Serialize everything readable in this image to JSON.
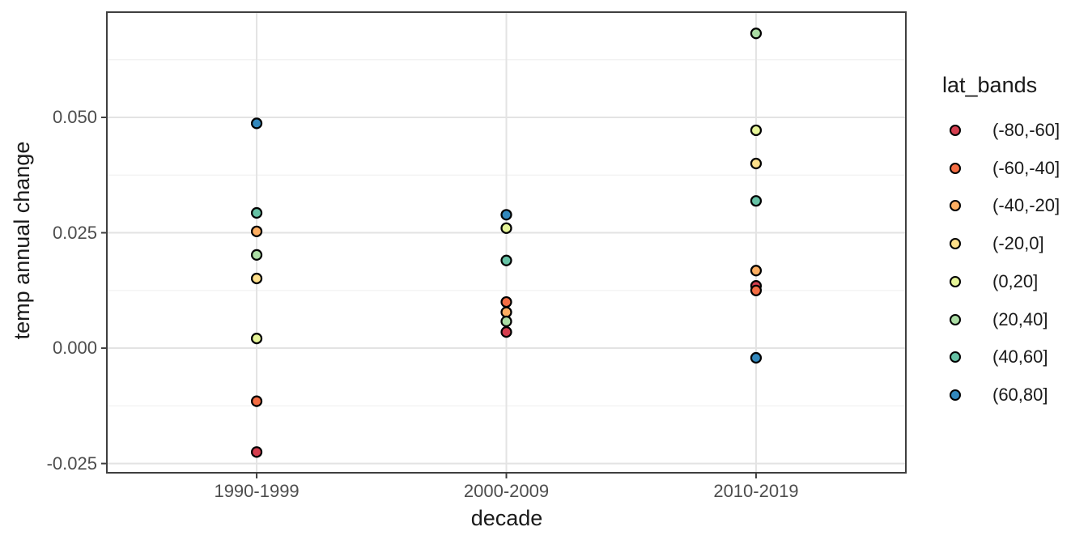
{
  "chart_data": {
    "type": "scatter",
    "title": "",
    "xlabel": "decade",
    "ylabel": "temp annual change",
    "legend_title": "lat_bands",
    "legend_position": "right",
    "grid": true,
    "categories": [
      "1990-1999",
      "2000-2009",
      "2010-2019"
    ],
    "y_ticks": [
      0.05,
      0.025,
      0.0,
      -0.025
    ],
    "y_tick_labels": [
      "0.050",
      "0.025",
      "0.000",
      "-0.025"
    ],
    "y_minor_breaks": [
      0.0625,
      0.0375,
      0.0125,
      -0.0125
    ],
    "ylim": [
      -0.027,
      0.0728
    ],
    "series": [
      {
        "name": "(-80,-60]",
        "color": "#D53E4F",
        "values": [
          -0.0225,
          0.0035,
          0.0135
        ]
      },
      {
        "name": "(-60,-40]",
        "color": "#F46D43",
        "values": [
          -0.0115,
          0.01,
          0.0125
        ]
      },
      {
        "name": "(-40,-20]",
        "color": "#FDAE61",
        "values": [
          0.0253,
          0.0078,
          0.0168
        ]
      },
      {
        "name": "(-20,0]",
        "color": "#FEE08B",
        "values": [
          0.0151,
          null,
          0.04
        ]
      },
      {
        "name": "(0,20]",
        "color": "#E6F598",
        "values": [
          0.0021,
          0.026,
          0.0472
        ]
      },
      {
        "name": "(20,40]",
        "color": "#ABDDA4",
        "values": [
          0.0202,
          0.0058,
          0.0682
        ]
      },
      {
        "name": "(40,60]",
        "color": "#66C2A5",
        "values": [
          0.0293,
          0.019,
          0.0319
        ]
      },
      {
        "name": "(60,80]",
        "color": "#3288BD",
        "values": [
          0.0487,
          0.0289,
          -0.0021
        ]
      }
    ]
  },
  "style": {
    "background": "#FFFFFF",
    "panel_background": "#FFFFFF",
    "panel_border": "#3f3f3f",
    "grid_major": "#E3E3E3",
    "grid_minor": "#F1F1F1",
    "tick_mark_color": "#3f3f3f",
    "tick_label_color": "#4D4D4D",
    "axis_title_color": "#1A1A1A",
    "point_stroke": "#000000"
  }
}
